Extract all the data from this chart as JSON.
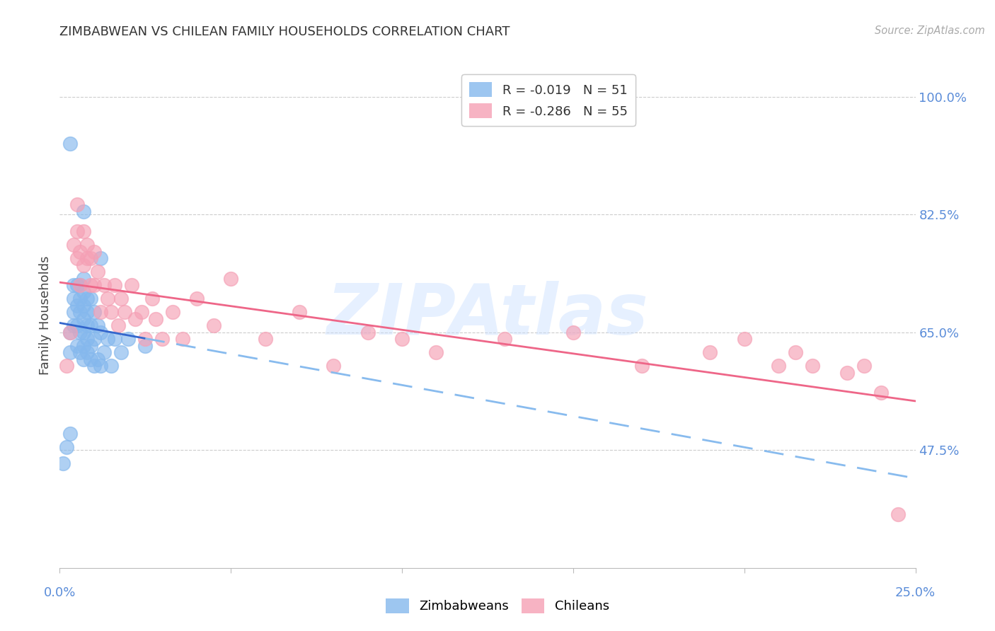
{
  "title": "ZIMBABWEAN VS CHILEAN FAMILY HOUSEHOLDS CORRELATION CHART",
  "source": "Source: ZipAtlas.com",
  "ylabel": "Family Households",
  "ytick_labels": [
    "100.0%",
    "82.5%",
    "65.0%",
    "47.5%"
  ],
  "ytick_values": [
    1.0,
    0.825,
    0.65,
    0.475
  ],
  "xmin": 0.0,
  "xmax": 0.25,
  "ymin": 0.3,
  "ymax": 1.05,
  "legend_r1": "R = -0.019",
  "legend_n1": "N = 51",
  "legend_r2": "R = -0.286",
  "legend_n2": "N = 55",
  "blue_color": "#85B8ED",
  "pink_color": "#F5A0B5",
  "trendline_blue_solid_color": "#3366CC",
  "trendline_blue_dash_color": "#88BBEE",
  "trendline_pink_color": "#EE6688",
  "watermark": "ZIPAtlas",
  "zimbabwean_x": [
    0.001,
    0.002,
    0.003,
    0.003,
    0.003,
    0.004,
    0.004,
    0.004,
    0.004,
    0.005,
    0.005,
    0.005,
    0.005,
    0.006,
    0.006,
    0.006,
    0.006,
    0.006,
    0.007,
    0.007,
    0.007,
    0.007,
    0.007,
    0.007,
    0.007,
    0.008,
    0.008,
    0.008,
    0.008,
    0.008,
    0.009,
    0.009,
    0.009,
    0.009,
    0.01,
    0.01,
    0.01,
    0.011,
    0.011,
    0.012,
    0.012,
    0.013,
    0.014,
    0.015,
    0.016,
    0.018,
    0.02,
    0.025,
    0.012,
    0.007,
    0.003
  ],
  "zimbabwean_y": [
    0.455,
    0.48,
    0.5,
    0.62,
    0.65,
    0.66,
    0.68,
    0.7,
    0.72,
    0.63,
    0.66,
    0.69,
    0.72,
    0.62,
    0.65,
    0.68,
    0.7,
    0.72,
    0.61,
    0.63,
    0.65,
    0.67,
    0.69,
    0.71,
    0.73,
    0.62,
    0.64,
    0.66,
    0.68,
    0.7,
    0.61,
    0.63,
    0.66,
    0.7,
    0.6,
    0.64,
    0.68,
    0.61,
    0.66,
    0.6,
    0.65,
    0.62,
    0.64,
    0.6,
    0.64,
    0.62,
    0.64,
    0.63,
    0.76,
    0.83,
    0.93
  ],
  "chilean_x": [
    0.002,
    0.003,
    0.004,
    0.005,
    0.005,
    0.005,
    0.006,
    0.006,
    0.007,
    0.007,
    0.008,
    0.008,
    0.009,
    0.009,
    0.01,
    0.01,
    0.011,
    0.012,
    0.013,
    0.014,
    0.015,
    0.016,
    0.017,
    0.018,
    0.019,
    0.021,
    0.022,
    0.024,
    0.025,
    0.027,
    0.028,
    0.03,
    0.033,
    0.036,
    0.04,
    0.045,
    0.05,
    0.06,
    0.07,
    0.08,
    0.09,
    0.1,
    0.11,
    0.13,
    0.15,
    0.17,
    0.19,
    0.2,
    0.21,
    0.215,
    0.22,
    0.23,
    0.235,
    0.24,
    0.245
  ],
  "chilean_y": [
    0.6,
    0.65,
    0.78,
    0.84,
    0.76,
    0.8,
    0.72,
    0.77,
    0.75,
    0.8,
    0.76,
    0.78,
    0.72,
    0.76,
    0.72,
    0.77,
    0.74,
    0.68,
    0.72,
    0.7,
    0.68,
    0.72,
    0.66,
    0.7,
    0.68,
    0.72,
    0.67,
    0.68,
    0.64,
    0.7,
    0.67,
    0.64,
    0.68,
    0.64,
    0.7,
    0.66,
    0.73,
    0.64,
    0.68,
    0.6,
    0.65,
    0.64,
    0.62,
    0.64,
    0.65,
    0.6,
    0.62,
    0.64,
    0.6,
    0.62,
    0.6,
    0.59,
    0.6,
    0.56,
    0.38
  ]
}
